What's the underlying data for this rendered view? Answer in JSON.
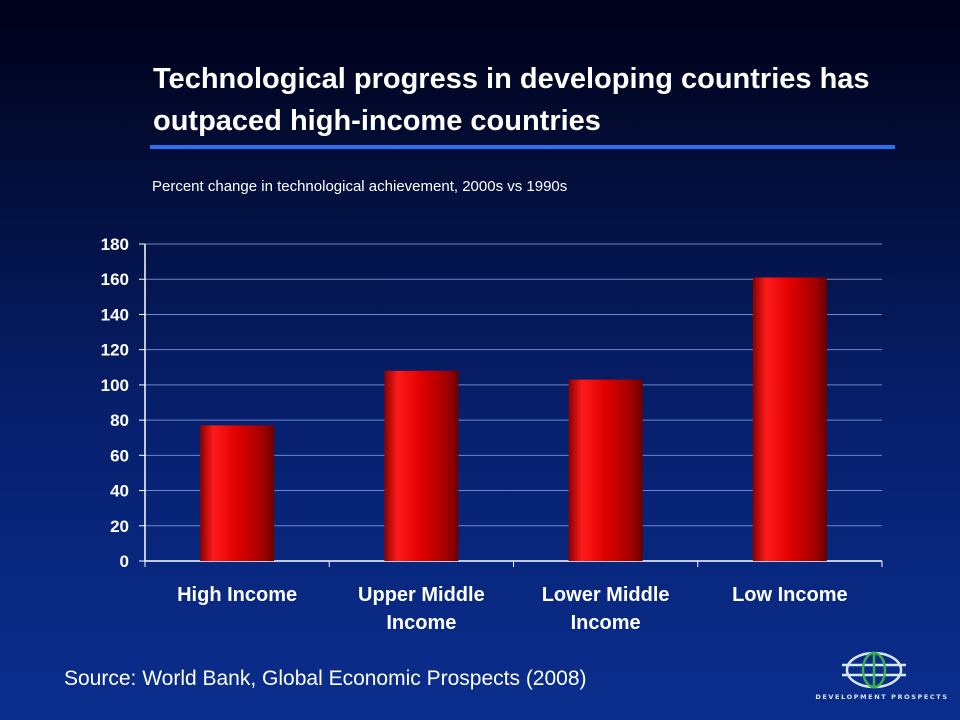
{
  "slide": {
    "title": "Technological progress in developing countries has outpaced high-income countries",
    "source": "Source: World Bank, Global Economic Prospects (2008)",
    "logo_text": "DEVELOPMENT PROSPECTS",
    "logo_icon": "globe-icon"
  },
  "colors": {
    "background_top": "#000018",
    "background_bottom": "#0a2e8e",
    "rule": "#2f6df0",
    "bar": "#e00000",
    "text": "#ffffff"
  },
  "chart_data": {
    "type": "bar",
    "title": "Percent change in technological achievement, 2000s vs 1990s",
    "categories": [
      "High Income",
      "Upper Middle Income",
      "Lower Middle Income",
      "Low Income"
    ],
    "category_lines": [
      [
        "High Income"
      ],
      [
        "Upper Middle",
        "Income"
      ],
      [
        "Lower Middle",
        "Income"
      ],
      [
        "Low Income"
      ]
    ],
    "values": [
      77,
      108,
      103,
      161
    ],
    "ylim": [
      0,
      180
    ],
    "yticks": [
      0,
      20,
      40,
      60,
      80,
      100,
      120,
      140,
      160,
      180
    ],
    "xlabel": "",
    "ylabel": "",
    "grid": true,
    "legend": "none",
    "data_labels": false
  }
}
